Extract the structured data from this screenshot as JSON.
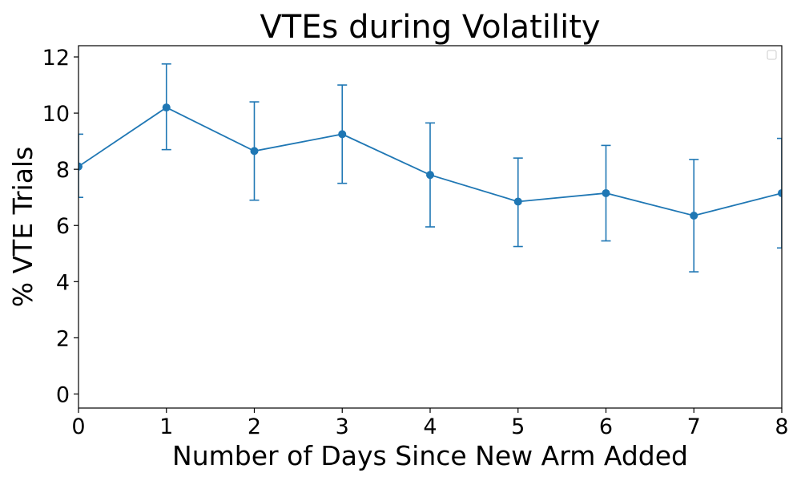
{
  "chart_data": {
    "type": "line",
    "title": "VTEs during Volatility",
    "xlabel": "Number of Days Since New Arm Added",
    "ylabel": "% VTE Trials",
    "x": [
      0,
      1,
      2,
      3,
      4,
      5,
      6,
      7,
      8
    ],
    "xlim": [
      0,
      8
    ],
    "ylim": [
      -0.5,
      12.4
    ],
    "x_ticks": [
      "0",
      "1",
      "2",
      "3",
      "4",
      "5",
      "6",
      "7",
      "8"
    ],
    "y_ticks": [
      "0",
      "2",
      "4",
      "6",
      "8",
      "10",
      "12"
    ],
    "series": [
      {
        "values": [
          8.1,
          10.2,
          8.65,
          9.25,
          7.8,
          6.85,
          7.15,
          6.35,
          7.15
        ],
        "error_low": [
          7.0,
          8.7,
          6.9,
          7.5,
          5.95,
          5.25,
          5.45,
          4.35,
          5.2
        ],
        "error_high": [
          9.25,
          11.75,
          10.4,
          11.0,
          9.65,
          8.4,
          8.85,
          8.35,
          9.1
        ],
        "color": "#1f77b4"
      }
    ],
    "legend": {
      "placement": "top-right",
      "entries": []
    },
    "grid": false
  }
}
